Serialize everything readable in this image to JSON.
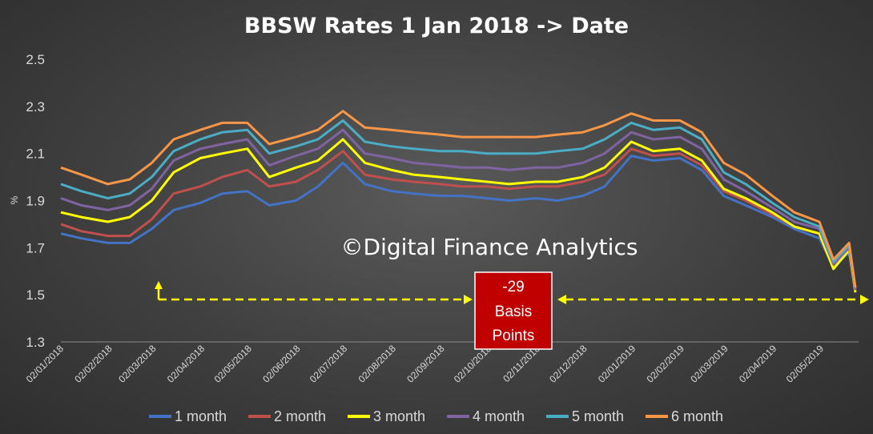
{
  "chart_data": {
    "type": "line",
    "title": "BBSW Rates 1 Jan 2018 -> Date",
    "xlabel": "",
    "ylabel": "%",
    "ylim": [
      1.3,
      2.5
    ],
    "yticks": [
      "2.5",
      "2.3",
      "2.1",
      "1.9",
      "1.7",
      "1.5",
      "1.3"
    ],
    "x_tick_labels": [
      "02/01/2018",
      "02/02/2018",
      "02/03/2018",
      "02/04/2018",
      "02/05/2018",
      "02/06/2018",
      "02/07/2018",
      "02/08/2018",
      "02/09/2018",
      "02/10/2018",
      "02/11/2018",
      "02/12/2018",
      "02/01/2019",
      "02/02/2019",
      "02/03/2019",
      "02/04/2019",
      "02/05/2019"
    ],
    "x": [
      "2018-01-02",
      "2018-01-15",
      "2018-02-01",
      "2018-02-15",
      "2018-03-01",
      "2018-03-15",
      "2018-04-01",
      "2018-04-15",
      "2018-05-01",
      "2018-05-15",
      "2018-06-01",
      "2018-06-15",
      "2018-07-01",
      "2018-07-15",
      "2018-08-01",
      "2018-08-15",
      "2018-09-01",
      "2018-09-15",
      "2018-10-01",
      "2018-10-15",
      "2018-11-01",
      "2018-11-15",
      "2018-12-01",
      "2018-12-15",
      "2019-01-01",
      "2019-01-15",
      "2019-02-01",
      "2019-02-15",
      "2019-03-01",
      "2019-03-15",
      "2019-04-01",
      "2019-04-15",
      "2019-05-01",
      "2019-05-10",
      "2019-05-20",
      "2019-05-24"
    ],
    "series": [
      {
        "name": "1 month",
        "color": "#4472C4",
        "values": [
          1.76,
          1.74,
          1.72,
          1.72,
          1.78,
          1.86,
          1.89,
          1.93,
          1.94,
          1.88,
          1.9,
          1.96,
          2.06,
          1.97,
          1.94,
          1.93,
          1.92,
          1.92,
          1.91,
          1.9,
          1.91,
          1.9,
          1.92,
          1.96,
          2.09,
          2.07,
          2.08,
          2.03,
          1.92,
          1.88,
          1.83,
          1.78,
          1.74,
          1.62,
          1.68,
          1.52
        ]
      },
      {
        "name": "2 month",
        "color": "#C0504D",
        "values": [
          1.8,
          1.77,
          1.75,
          1.75,
          1.82,
          1.93,
          1.96,
          2.0,
          2.03,
          1.96,
          1.98,
          2.03,
          2.11,
          2.01,
          1.99,
          1.98,
          1.97,
          1.96,
          1.96,
          1.95,
          1.96,
          1.96,
          1.98,
          2.01,
          2.12,
          2.09,
          2.1,
          2.05,
          1.94,
          1.9,
          1.84,
          1.79,
          1.76,
          1.63,
          1.69,
          1.52
        ]
      },
      {
        "name": "3 month",
        "color": "#FFFF00",
        "values": [
          1.85,
          1.83,
          1.81,
          1.83,
          1.9,
          2.02,
          2.08,
          2.1,
          2.12,
          2.0,
          2.04,
          2.07,
          2.16,
          2.06,
          2.03,
          2.01,
          2.0,
          1.99,
          1.98,
          1.97,
          1.98,
          1.98,
          2.0,
          2.04,
          2.15,
          2.11,
          2.12,
          2.07,
          1.95,
          1.91,
          1.85,
          1.79,
          1.76,
          1.61,
          1.69,
          1.51
        ]
      },
      {
        "name": "4 month",
        "color": "#8064A2",
        "values": [
          1.91,
          1.88,
          1.86,
          1.88,
          1.95,
          2.07,
          2.12,
          2.14,
          2.16,
          2.05,
          2.09,
          2.12,
          2.2,
          2.1,
          2.08,
          2.06,
          2.05,
          2.04,
          2.04,
          2.03,
          2.04,
          2.04,
          2.06,
          2.1,
          2.19,
          2.16,
          2.17,
          2.12,
          1.99,
          1.94,
          1.87,
          1.81,
          1.78,
          1.63,
          1.7,
          1.52
        ]
      },
      {
        "name": "5 month",
        "color": "#4BACC6",
        "values": [
          1.97,
          1.94,
          1.91,
          1.93,
          2.0,
          2.11,
          2.16,
          2.19,
          2.2,
          2.1,
          2.13,
          2.16,
          2.24,
          2.15,
          2.13,
          2.12,
          2.11,
          2.11,
          2.1,
          2.1,
          2.1,
          2.11,
          2.12,
          2.16,
          2.23,
          2.2,
          2.21,
          2.16,
          2.02,
          1.97,
          1.89,
          1.83,
          1.79,
          1.64,
          1.71,
          1.53
        ]
      },
      {
        "name": "6 month",
        "color": "#F79646",
        "values": [
          2.04,
          2.01,
          1.97,
          1.99,
          2.06,
          2.16,
          2.2,
          2.23,
          2.23,
          2.14,
          2.17,
          2.2,
          2.28,
          2.21,
          2.2,
          2.19,
          2.18,
          2.17,
          2.17,
          2.17,
          2.17,
          2.18,
          2.19,
          2.22,
          2.27,
          2.24,
          2.24,
          2.19,
          2.06,
          2.01,
          1.92,
          1.85,
          1.81,
          1.65,
          1.72,
          1.53
        ]
      }
    ],
    "legend": "bottom",
    "grid": false,
    "watermark": "©Digital Finance Analytics",
    "annotation": {
      "text_lines": [
        "-29",
        "Basis",
        "Points"
      ],
      "box_color": "#C00000",
      "arrow_color": "#FFFF00"
    }
  }
}
